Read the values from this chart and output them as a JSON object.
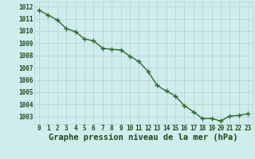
{
  "x": [
    0,
    1,
    2,
    3,
    4,
    5,
    6,
    7,
    8,
    9,
    10,
    11,
    12,
    13,
    14,
    15,
    16,
    17,
    18,
    19,
    20,
    21,
    22,
    23
  ],
  "y": [
    1011.7,
    1011.3,
    1010.9,
    1010.2,
    1009.95,
    1009.35,
    1009.2,
    1008.6,
    1008.5,
    1008.45,
    1007.95,
    1007.5,
    1006.7,
    1005.55,
    1005.1,
    1004.7,
    1003.9,
    1003.4,
    1002.85,
    1002.85,
    1002.65,
    1003.05,
    1003.1,
    1003.25
  ],
  "line_color": "#2d6a2d",
  "marker": "+",
  "marker_size": 4.0,
  "bg_color": "#d0eded",
  "grid_color": "#b8cccc",
  "xlabel": "Graphe pression niveau de la mer (hPa)",
  "xlabel_color": "#1a4a1a",
  "tick_color": "#1a4a1a",
  "ylim": [
    1002.4,
    1012.4
  ],
  "yticks": [
    1003,
    1004,
    1005,
    1006,
    1007,
    1008,
    1009,
    1010,
    1011,
    1012
  ],
  "xlim": [
    -0.5,
    23.5
  ],
  "xticks": [
    0,
    1,
    2,
    3,
    4,
    5,
    6,
    7,
    8,
    9,
    10,
    11,
    12,
    13,
    14,
    15,
    16,
    17,
    18,
    19,
    20,
    21,
    22,
    23
  ],
  "tick_fontsize": 5.5,
  "xlabel_fontsize": 7.5,
  "linewidth": 1.0
}
